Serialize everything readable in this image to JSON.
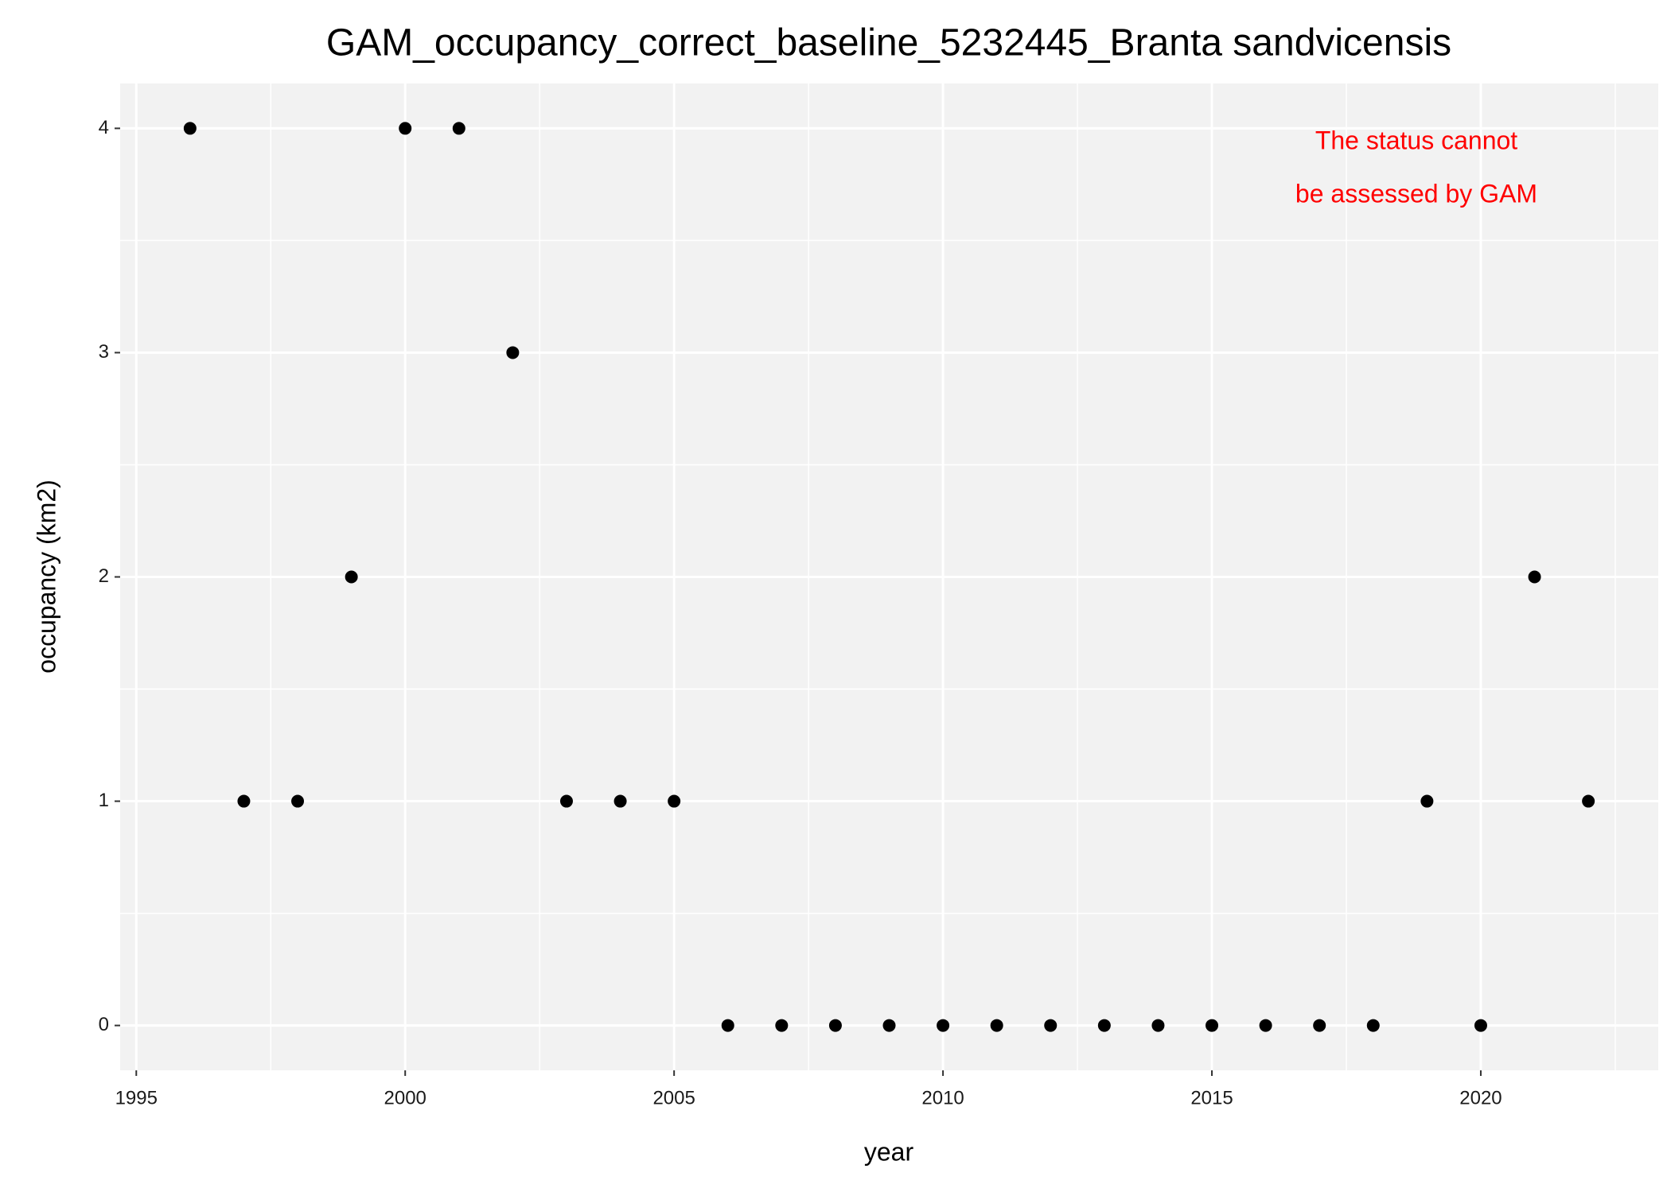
{
  "chart_data": {
    "type": "scatter",
    "title": "GAM_occupancy_correct_baseline_5232445_Branta sandvicensis",
    "x_label": "year",
    "y_label": "occupancy (km2)",
    "annotation": [
      "The status cannot",
      "be assessed by GAM"
    ],
    "annotation_color": "#ff0000",
    "x": [
      1996,
      1997,
      1998,
      1999,
      2000,
      2001,
      2002,
      2003,
      2004,
      2005,
      2006,
      2007,
      2008,
      2009,
      2010,
      2011,
      2012,
      2013,
      2014,
      2015,
      2016,
      2017,
      2018,
      2019,
      2020,
      2021,
      2022
    ],
    "values": [
      4,
      1,
      1,
      2,
      4,
      4,
      3,
      1,
      1,
      1,
      0,
      0,
      0,
      0,
      0,
      0,
      0,
      0,
      0,
      0,
      0,
      0,
      0,
      1,
      0,
      2,
      1
    ],
    "color": "#000000",
    "xlim": [
      1994.7,
      2023.3
    ],
    "ylim": [
      -0.2,
      4.2
    ],
    "xticks": [
      1995,
      2000,
      2005,
      2010,
      2015,
      2020
    ],
    "yticks": [
      0,
      1,
      2,
      3,
      4
    ],
    "grid": true,
    "minor_grid": true
  }
}
